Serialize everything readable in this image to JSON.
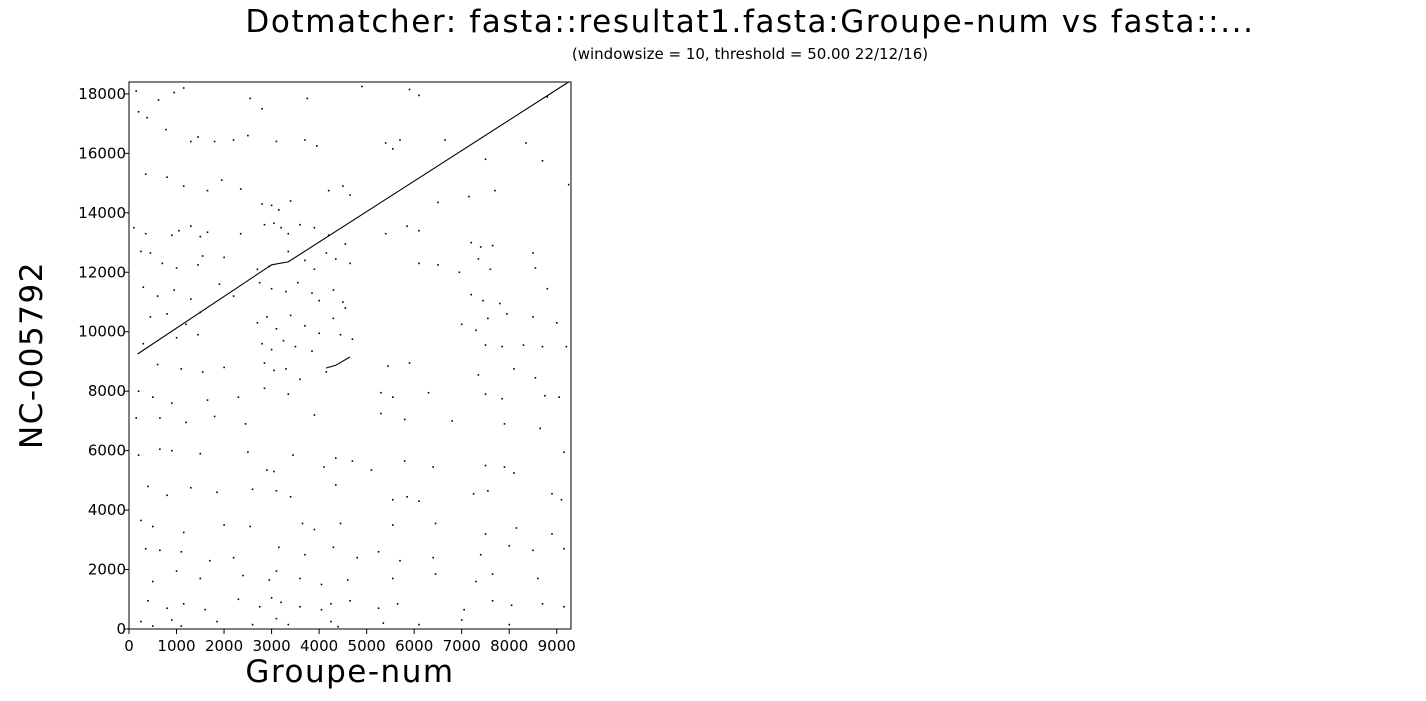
{
  "chart_data": {
    "type": "scatter",
    "title": "Dotmatcher: fasta::resultat1.fasta:Groupe-num vs fasta::...",
    "subtitle": "(windowsize = 10, threshold = 50.00  22/12/16)",
    "xlabel": "Groupe-num",
    "ylabel": "NC-005792",
    "xlim": [
      0,
      9300
    ],
    "ylim": [
      0,
      18400
    ],
    "x_ticks": [
      0,
      1000,
      2000,
      3000,
      4000,
      5000,
      6000,
      7000,
      8000,
      9000
    ],
    "y_ticks": [
      0,
      2000,
      4000,
      6000,
      8000,
      10000,
      12000,
      14000,
      16000,
      18000
    ],
    "grid": false,
    "legend": "none",
    "colors": {
      "marks": "#000000",
      "background": "#ffffff"
    },
    "series": [
      {
        "style": "line",
        "points": [
          [
            180,
            9250
          ],
          [
            3000,
            12250
          ],
          [
            3350,
            12350
          ],
          [
            9250,
            18400
          ]
        ]
      },
      {
        "style": "line",
        "points": [
          [
            4150,
            8780
          ],
          [
            4350,
            8870
          ],
          [
            4650,
            9150
          ]
        ]
      },
      {
        "style": "dots",
        "points": [
          [
            150,
            18100
          ],
          [
            620,
            17800
          ],
          [
            950,
            18050
          ],
          [
            1150,
            18200
          ],
          [
            2550,
            17850
          ],
          [
            2800,
            17500
          ],
          [
            3750,
            17850
          ],
          [
            4900,
            18250
          ],
          [
            5900,
            18150
          ],
          [
            6100,
            17950
          ],
          [
            8800,
            17900
          ],
          [
            200,
            17400
          ],
          [
            380,
            17200
          ],
          [
            780,
            16800
          ],
          [
            1300,
            16400
          ],
          [
            1450,
            16550
          ],
          [
            1800,
            16400
          ],
          [
            2200,
            16450
          ],
          [
            2500,
            16600
          ],
          [
            3100,
            16400
          ],
          [
            3700,
            16450
          ],
          [
            3950,
            16250
          ],
          [
            5400,
            16350
          ],
          [
            5550,
            16150
          ],
          [
            5700,
            16450
          ],
          [
            6650,
            16450
          ],
          [
            7500,
            15800
          ],
          [
            8350,
            16350
          ],
          [
            8700,
            15750
          ],
          [
            350,
            15300
          ],
          [
            800,
            15200
          ],
          [
            1150,
            14900
          ],
          [
            1650,
            14750
          ],
          [
            1950,
            15100
          ],
          [
            2350,
            14800
          ],
          [
            2800,
            14300
          ],
          [
            3000,
            14250
          ],
          [
            3150,
            14100
          ],
          [
            3400,
            14400
          ],
          [
            4200,
            14750
          ],
          [
            4500,
            14900
          ],
          [
            4650,
            14600
          ],
          [
            6500,
            14350
          ],
          [
            7150,
            14550
          ],
          [
            7700,
            14750
          ],
          [
            9250,
            14950
          ],
          [
            100,
            13500
          ],
          [
            350,
            13300
          ],
          [
            900,
            13250
          ],
          [
            1050,
            13400
          ],
          [
            1300,
            13550
          ],
          [
            1500,
            13200
          ],
          [
            1650,
            13350
          ],
          [
            2350,
            13300
          ],
          [
            2850,
            13600
          ],
          [
            3050,
            13650
          ],
          [
            3200,
            13500
          ],
          [
            3350,
            13300
          ],
          [
            3600,
            13600
          ],
          [
            3900,
            13500
          ],
          [
            4200,
            13250
          ],
          [
            4550,
            12950
          ],
          [
            5400,
            13300
          ],
          [
            5850,
            13550
          ],
          [
            6100,
            13400
          ],
          [
            7200,
            13000
          ],
          [
            7400,
            12850
          ],
          [
            7650,
            12900
          ],
          [
            8500,
            12650
          ],
          [
            250,
            12700
          ],
          [
            450,
            12650
          ],
          [
            700,
            12300
          ],
          [
            1000,
            12150
          ],
          [
            1450,
            12250
          ],
          [
            1550,
            12550
          ],
          [
            2000,
            12500
          ],
          [
            2700,
            12100
          ],
          [
            2950,
            12200
          ],
          [
            3350,
            12700
          ],
          [
            3700,
            12400
          ],
          [
            3900,
            12100
          ],
          [
            4150,
            12650
          ],
          [
            4350,
            12450
          ],
          [
            4650,
            12300
          ],
          [
            6100,
            12300
          ],
          [
            6500,
            12250
          ],
          [
            6950,
            12000
          ],
          [
            7350,
            12450
          ],
          [
            7600,
            12100
          ],
          [
            8550,
            12150
          ],
          [
            300,
            11500
          ],
          [
            600,
            11200
          ],
          [
            950,
            11400
          ],
          [
            1300,
            11100
          ],
          [
            1900,
            11600
          ],
          [
            2200,
            11200
          ],
          [
            2750,
            11650
          ],
          [
            3000,
            11450
          ],
          [
            3300,
            11350
          ],
          [
            3550,
            11650
          ],
          [
            3850,
            11300
          ],
          [
            4000,
            11050
          ],
          [
            4300,
            11400
          ],
          [
            4500,
            11000
          ],
          [
            7200,
            11250
          ],
          [
            7450,
            11050
          ],
          [
            7800,
            10950
          ],
          [
            8800,
            11450
          ],
          [
            450,
            10500
          ],
          [
            800,
            10600
          ],
          [
            1200,
            10250
          ],
          [
            1500,
            10650
          ],
          [
            2700,
            10300
          ],
          [
            2900,
            10500
          ],
          [
            3100,
            10100
          ],
          [
            3400,
            10550
          ],
          [
            3700,
            10200
          ],
          [
            4000,
            9950
          ],
          [
            4300,
            10450
          ],
          [
            4550,
            10800
          ],
          [
            7000,
            10250
          ],
          [
            7300,
            10050
          ],
          [
            7550,
            10450
          ],
          [
            7950,
            10600
          ],
          [
            8500,
            10500
          ],
          [
            9000,
            10300
          ],
          [
            300,
            9600
          ],
          [
            1000,
            9800
          ],
          [
            1450,
            9900
          ],
          [
            2800,
            9600
          ],
          [
            3000,
            9400
          ],
          [
            3250,
            9700
          ],
          [
            3500,
            9500
          ],
          [
            3850,
            9350
          ],
          [
            4450,
            9900
          ],
          [
            4700,
            9750
          ],
          [
            7500,
            9550
          ],
          [
            7850,
            9500
          ],
          [
            8300,
            9550
          ],
          [
            8700,
            9500
          ],
          [
            9200,
            9500
          ],
          [
            600,
            8900
          ],
          [
            1100,
            8750
          ],
          [
            1550,
            8650
          ],
          [
            2000,
            8800
          ],
          [
            2850,
            8950
          ],
          [
            3050,
            8700
          ],
          [
            3300,
            8750
          ],
          [
            3600,
            8400
          ],
          [
            4150,
            8650
          ],
          [
            5450,
            8850
          ],
          [
            5900,
            8950
          ],
          [
            7350,
            8550
          ],
          [
            8100,
            8750
          ],
          [
            8550,
            8450
          ],
          [
            200,
            8000
          ],
          [
            500,
            7800
          ],
          [
            900,
            7600
          ],
          [
            1650,
            7700
          ],
          [
            2300,
            7800
          ],
          [
            2850,
            8100
          ],
          [
            3350,
            7900
          ],
          [
            5300,
            7950
          ],
          [
            5550,
            7800
          ],
          [
            6300,
            7950
          ],
          [
            7500,
            7900
          ],
          [
            7850,
            7750
          ],
          [
            8750,
            7850
          ],
          [
            9050,
            7800
          ],
          [
            150,
            7100
          ],
          [
            650,
            7100
          ],
          [
            1200,
            6950
          ],
          [
            1800,
            7150
          ],
          [
            2450,
            6900
          ],
          [
            3900,
            7200
          ],
          [
            5300,
            7250
          ],
          [
            5800,
            7050
          ],
          [
            6800,
            7000
          ],
          [
            7900,
            6900
          ],
          [
            8650,
            6750
          ],
          [
            200,
            5850
          ],
          [
            650,
            6050
          ],
          [
            900,
            6000
          ],
          [
            1500,
            5900
          ],
          [
            2500,
            5950
          ],
          [
            2900,
            5350
          ],
          [
            3050,
            5300
          ],
          [
            3450,
            5850
          ],
          [
            4100,
            5450
          ],
          [
            4350,
            5750
          ],
          [
            4700,
            5650
          ],
          [
            5100,
            5350
          ],
          [
            5800,
            5650
          ],
          [
            6400,
            5450
          ],
          [
            7500,
            5500
          ],
          [
            7900,
            5450
          ],
          [
            8100,
            5250
          ],
          [
            9150,
            5950
          ],
          [
            400,
            4800
          ],
          [
            800,
            4500
          ],
          [
            1300,
            4750
          ],
          [
            1850,
            4600
          ],
          [
            2600,
            4700
          ],
          [
            3100,
            4650
          ],
          [
            3400,
            4450
          ],
          [
            4350,
            4850
          ],
          [
            5550,
            4350
          ],
          [
            5850,
            4450
          ],
          [
            6100,
            4300
          ],
          [
            7250,
            4550
          ],
          [
            7550,
            4650
          ],
          [
            8900,
            4550
          ],
          [
            9100,
            4350
          ],
          [
            250,
            3650
          ],
          [
            500,
            3450
          ],
          [
            1150,
            3250
          ],
          [
            2000,
            3500
          ],
          [
            2550,
            3450
          ],
          [
            3650,
            3550
          ],
          [
            3900,
            3350
          ],
          [
            4450,
            3550
          ],
          [
            5550,
            3500
          ],
          [
            6450,
            3550
          ],
          [
            7500,
            3200
          ],
          [
            8150,
            3400
          ],
          [
            8900,
            3200
          ],
          [
            350,
            2700
          ],
          [
            650,
            2650
          ],
          [
            1100,
            2600
          ],
          [
            1700,
            2300
          ],
          [
            2200,
            2400
          ],
          [
            3150,
            2750
          ],
          [
            3700,
            2500
          ],
          [
            4300,
            2750
          ],
          [
            4800,
            2400
          ],
          [
            5250,
            2600
          ],
          [
            5700,
            2300
          ],
          [
            6400,
            2400
          ],
          [
            7400,
            2500
          ],
          [
            8000,
            2800
          ],
          [
            8500,
            2650
          ],
          [
            9150,
            2700
          ],
          [
            500,
            1600
          ],
          [
            1000,
            1950
          ],
          [
            1500,
            1700
          ],
          [
            2400,
            1800
          ],
          [
            2950,
            1650
          ],
          [
            3100,
            1950
          ],
          [
            3600,
            1700
          ],
          [
            4050,
            1500
          ],
          [
            4600,
            1650
          ],
          [
            5550,
            1700
          ],
          [
            6450,
            1850
          ],
          [
            7300,
            1600
          ],
          [
            7650,
            1850
          ],
          [
            8600,
            1700
          ],
          [
            400,
            950
          ],
          [
            800,
            700
          ],
          [
            1150,
            850
          ],
          [
            1600,
            650
          ],
          [
            2300,
            1000
          ],
          [
            2750,
            750
          ],
          [
            3000,
            1050
          ],
          [
            3200,
            900
          ],
          [
            3600,
            750
          ],
          [
            4050,
            650
          ],
          [
            4250,
            850
          ],
          [
            4650,
            950
          ],
          [
            5250,
            700
          ],
          [
            5650,
            850
          ],
          [
            7050,
            650
          ],
          [
            7650,
            950
          ],
          [
            8050,
            800
          ],
          [
            8700,
            850
          ],
          [
            9150,
            750
          ],
          [
            250,
            250
          ],
          [
            500,
            100
          ],
          [
            900,
            300
          ],
          [
            1100,
            100
          ],
          [
            1850,
            250
          ],
          [
            2600,
            150
          ],
          [
            3100,
            350
          ],
          [
            3350,
            150
          ],
          [
            4250,
            250
          ],
          [
            4400,
            80
          ],
          [
            5350,
            200
          ],
          [
            6100,
            150
          ],
          [
            7000,
            300
          ],
          [
            8000,
            150
          ]
        ]
      }
    ]
  }
}
